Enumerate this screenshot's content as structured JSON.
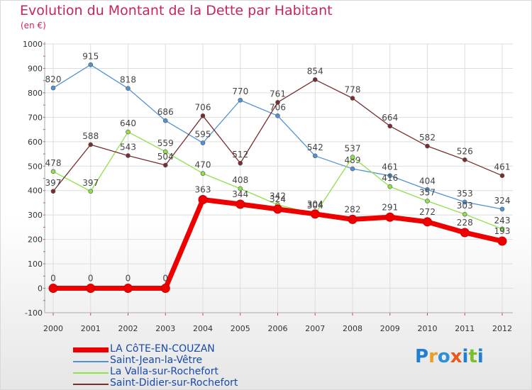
{
  "header": {
    "title": "Evolution du Montant de la Dette par Habitant",
    "subtitle": "(en €)"
  },
  "logo": {
    "letters": [
      "P",
      "r",
      "o",
      "x",
      "i",
      "t",
      "i"
    ],
    "colors": [
      "#1f7fd1",
      "#e8a020",
      "#2e8fd6",
      "#e85a1c",
      "#1f7fd1",
      "#7abf2a",
      "#1f7fd1"
    ]
  },
  "chart_data": {
    "type": "line",
    "title": "Evolution du Montant de la Dette par Habitant",
    "subtitle": "(en €)",
    "xlabel": "",
    "ylabel": "",
    "categories": [
      "2000",
      "2001",
      "2002",
      "2003",
      "2004",
      "2005",
      "2006",
      "2007",
      "2008",
      "2009",
      "2010",
      "2011",
      "2012"
    ],
    "ylim": [
      -100,
      1000
    ],
    "yticks": [
      -100,
      0,
      100,
      200,
      300,
      400,
      500,
      600,
      700,
      800,
      900,
      1000
    ],
    "grid": true,
    "legend_position": "bottom-left",
    "series": [
      {
        "name": "LA CôTE-EN-COUZAN",
        "color": "#ee0000",
        "bold": true,
        "values": [
          0,
          0,
          0,
          0,
          363,
          344,
          324,
          304,
          282,
          291,
          272,
          228,
          193
        ]
      },
      {
        "name": "Saint-Jean-la-Vêtre",
        "color": "#4f93d3",
        "bold": false,
        "values": [
          820,
          915,
          818,
          686,
          595,
          770,
          706,
          542,
          489,
          461,
          404,
          353,
          324
        ]
      },
      {
        "name": "La Valla-sur-Rochefort",
        "color": "#8fe04a",
        "bold": false,
        "values": [
          478,
          397,
          640,
          559,
          470,
          408,
          342,
          304,
          537,
          416,
          357,
          303,
          243
        ]
      },
      {
        "name": "Saint-Didier-sur-Rochefort",
        "color": "#7a2d2d",
        "bold": false,
        "values": [
          397,
          588,
          543,
          504,
          706,
          512,
          761,
          854,
          778,
          664,
          582,
          526,
          461
        ]
      }
    ]
  }
}
